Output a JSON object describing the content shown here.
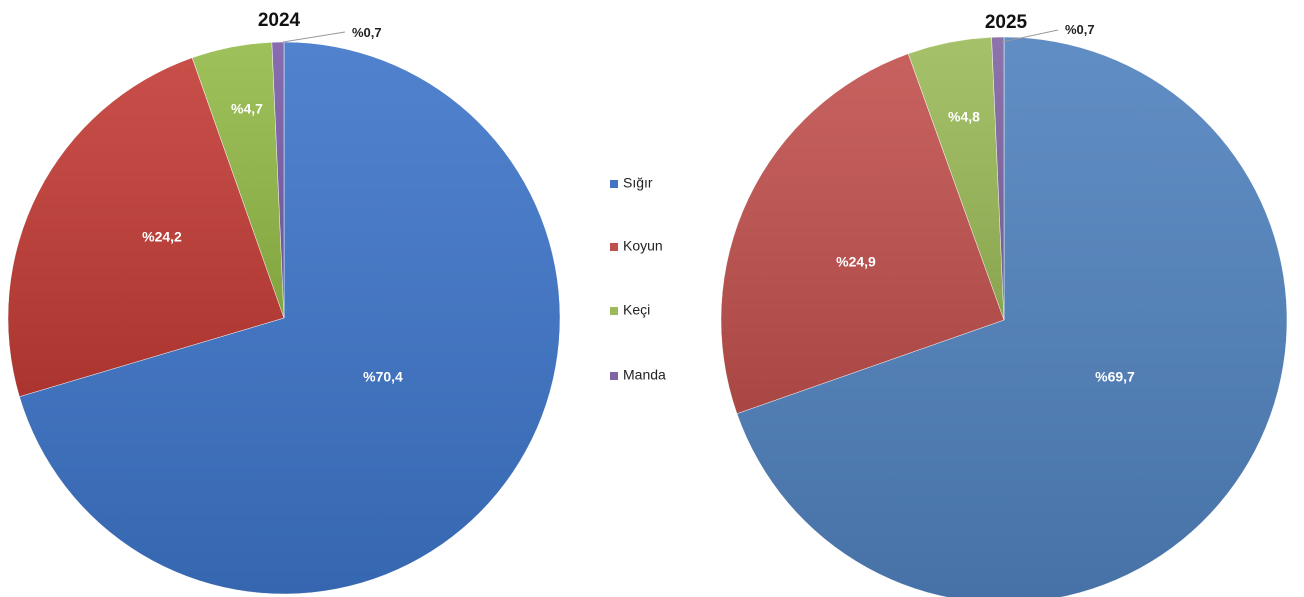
{
  "legend": [
    {
      "label": "Sığır",
      "color": "#4472C4"
    },
    {
      "label": "Koyun",
      "color": "#C0504D"
    },
    {
      "label": "Keçi",
      "color": "#9BBB59"
    },
    {
      "label": "Manda",
      "color": "#8064A2"
    }
  ],
  "chart_data": [
    {
      "type": "pie",
      "title": "2024",
      "categories": [
        "Sığır",
        "Koyun",
        "Keçi",
        "Manda"
      ],
      "values": [
        70.4,
        24.2,
        4.7,
        0.7
      ],
      "labels": [
        "%70,4",
        "%24,2",
        "%4,7",
        "%0,7"
      ],
      "colors": [
        "#3D74C8",
        "#C23B35",
        "#93BA48",
        "#7A5CA8"
      ]
    },
    {
      "type": "pie",
      "title": "2025",
      "categories": [
        "Sığır",
        "Koyun",
        "Keçi",
        "Manda"
      ],
      "values": [
        69.7,
        24.9,
        4.8,
        0.7
      ],
      "labels": [
        "%69,7",
        "%24,9",
        "%4,8",
        "%0,7"
      ],
      "colors": [
        "#4F81BD",
        "#C0504D",
        "#9BBB59",
        "#8064A2"
      ]
    }
  ]
}
